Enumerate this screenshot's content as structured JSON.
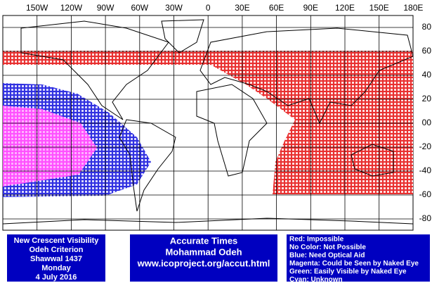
{
  "map": {
    "lon_labels": [
      "150W",
      "120W",
      "90W",
      "60W",
      "30W",
      "0",
      "30E",
      "60E",
      "90E",
      "120E",
      "150E",
      "180E"
    ],
    "lat_labels": [
      "80",
      "60",
      "40",
      "20",
      "00",
      "-20",
      "-40",
      "-60",
      "-80"
    ]
  },
  "info": {
    "left": [
      "New Crescent Visibility",
      "Odeh Criterion",
      "Shawwal 1437",
      "Monday",
      "4 July 2016"
    ],
    "middle": [
      "Accurate Times",
      "Mohammad Odeh",
      "www.icoproject.org/accut.html"
    ],
    "legend": [
      "Red: Impossible",
      "No Color: Not Possible",
      "Blue: Need Optical Aid",
      "Magenta: Could be Seen by Naked Eye",
      "Green: Easily Visible by Naked Eye",
      "Cyan: Unknown"
    ]
  }
}
